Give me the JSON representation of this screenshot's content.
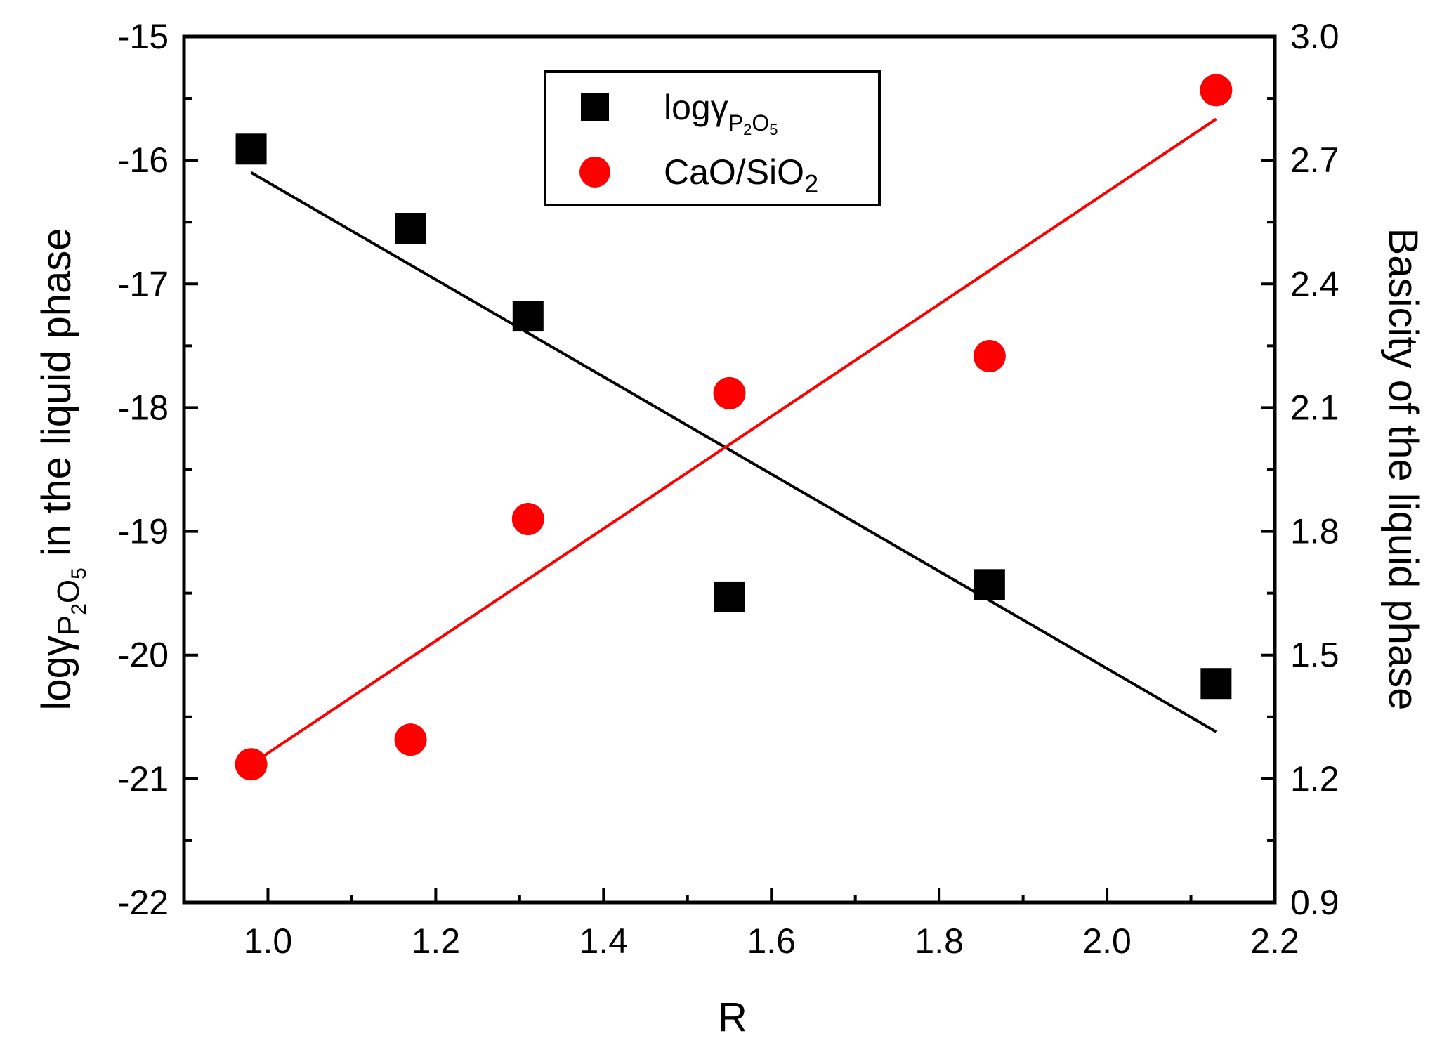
{
  "chart_data": {
    "type": "scatter",
    "xlabel": "R",
    "ylabel_left": {
      "prefix": "logγ",
      "sub1": "P",
      "sub2": "2",
      "mid": "O",
      "sub3": "5",
      "suffix": " in the liquid phase"
    },
    "ylabel_right": "Basicity of the liquid phase",
    "xlim": [
      0.9,
      2.2
    ],
    "ylim_left": [
      -22,
      -15
    ],
    "ylim_right": [
      0.9,
      3.0
    ],
    "x_ticks": [
      1.0,
      1.2,
      1.4,
      1.6,
      1.8,
      2.0,
      2.2
    ],
    "x_tick_labels": [
      "1.0",
      "1.2",
      "1.4",
      "1.6",
      "1.8",
      "2.0",
      "2.2"
    ],
    "y_left_ticks": [
      -22,
      -21,
      -20,
      -19,
      -18,
      -17,
      -16,
      -15
    ],
    "y_left_tick_labels": [
      "-22",
      "-21",
      "-20",
      "-19",
      "-18",
      "-17",
      "-16",
      "-15"
    ],
    "y_right_ticks": [
      0.9,
      1.2,
      1.5,
      1.8,
      2.1,
      2.4,
      2.7,
      3.0
    ],
    "y_right_tick_labels": [
      "0.9",
      "1.2",
      "1.5",
      "1.8",
      "2.1",
      "2.4",
      "2.7",
      "3.0"
    ],
    "series": [
      {
        "name": "logγP2O5",
        "axis": "left",
        "marker": "square",
        "color": "#000000",
        "x": [
          0.98,
          1.17,
          1.31,
          1.55,
          1.86,
          2.13
        ],
        "y": [
          -15.91,
          -16.55,
          -17.26,
          -19.53,
          -19.43,
          -20.23
        ],
        "fit": {
          "x": [
            0.98,
            2.13
          ],
          "y": [
            -16.1,
            -20.62
          ]
        }
      },
      {
        "name": "CaO/SiO2",
        "axis": "right",
        "marker": "circle",
        "color": "#ff0000",
        "x": [
          0.98,
          1.17,
          1.31,
          1.55,
          1.86,
          2.13
        ],
        "y": [
          1.235,
          1.295,
          1.83,
          2.135,
          2.225,
          2.87
        ],
        "fit": {
          "x": [
            0.98,
            2.13
          ],
          "y": [
            1.235,
            2.8
          ]
        }
      }
    ],
    "legend": {
      "position": "top-center",
      "entries": [
        {
          "base": "logγ",
          "sub1": "P",
          "sub2": "2",
          "mid": "O",
          "sub3": "5"
        },
        {
          "base": "CaO/SiO",
          "sub": "2"
        }
      ]
    }
  }
}
